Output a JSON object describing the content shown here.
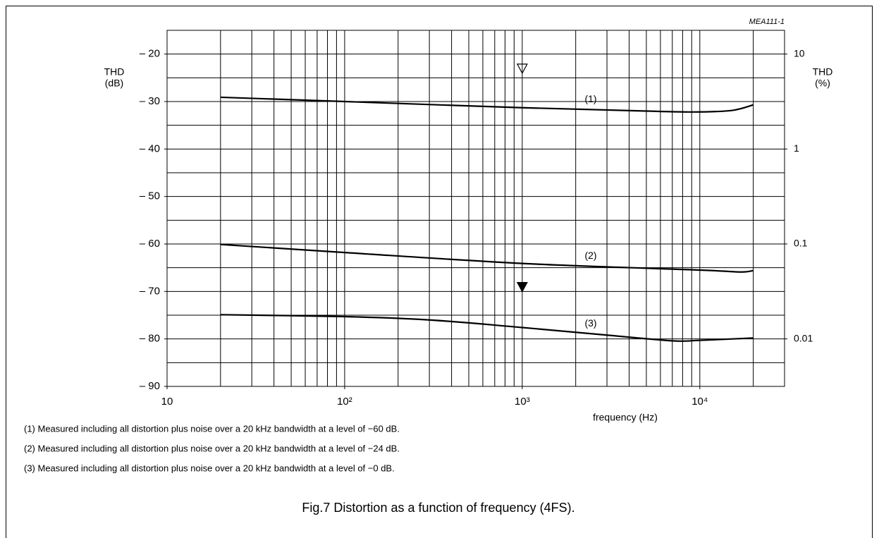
{
  "chart_data": {
    "type": "line",
    "code": "MEA111-1",
    "y_label": [
      "THD",
      "(dB)"
    ],
    "y2_label": [
      "THD",
      "(%)"
    ],
    "x_label": "frequency  (Hz)",
    "xlog": true,
    "y2log": true,
    "xlim": [
      10,
      30000
    ],
    "ylim": [
      -90,
      -15
    ],
    "y2lim": [
      0.00316,
      17.78
    ],
    "xticks": [
      10,
      {
        "value": 100,
        "label": "10²"
      },
      {
        "value": 1000,
        "label": "10³"
      },
      {
        "value": 10000,
        "label": "10⁴"
      }
    ],
    "yticks": [
      {
        "value": -20,
        "label": "– 20"
      },
      {
        "value": -30,
        "label": "– 30"
      },
      {
        "value": -40,
        "label": "– 40"
      },
      {
        "value": -50,
        "label": "– 50"
      },
      {
        "value": -60,
        "label": "– 60"
      },
      {
        "value": -70,
        "label": "– 70"
      },
      {
        "value": -80,
        "label": "– 80"
      },
      {
        "value": -90,
        "label": "– 90"
      }
    ],
    "y2ticks": [
      10,
      1,
      0.1,
      0.01
    ],
    "xgrid": [
      20,
      30,
      40,
      50,
      60,
      70,
      80,
      90,
      100,
      200,
      300,
      400,
      500,
      600,
      700,
      800,
      900,
      1000,
      2000,
      3000,
      4000,
      5000,
      6000,
      7000,
      8000,
      9000,
      10000,
      20000
    ],
    "ygrid": [
      -85,
      -80,
      -75,
      -70,
      -65,
      -60,
      -55,
      -50,
      -45,
      -40,
      -35,
      -30,
      -25,
      -20
    ],
    "color": "#000000",
    "series": [
      {
        "name": "(1)",
        "x": [
          20,
          100,
          1000,
          5000,
          9000,
          15000,
          20000
        ],
        "values": [
          -29.1,
          -30,
          -31.3,
          -32,
          -32.2,
          -31.9,
          -30.7
        ]
      },
      {
        "name": "(2)",
        "x": [
          20,
          100,
          1000,
          10000,
          17000,
          20000
        ],
        "values": [
          -60.1,
          -61.8,
          -64.1,
          -65.5,
          -65.9,
          -65.6
        ]
      },
      {
        "name": "(3)",
        "x": [
          20,
          100,
          300,
          1000,
          3000,
          7000,
          10000,
          20000
        ],
        "values": [
          -74.9,
          -75.3,
          -76,
          -77.6,
          -79.2,
          -80.4,
          -80.3,
          -79.8
        ]
      }
    ],
    "markers": [
      {
        "x": 1000,
        "y": -23,
        "fill": "none"
      },
      {
        "x": 1000,
        "y": -69,
        "fill": "#000000"
      }
    ],
    "notes": [
      "(1)  Measured including all distortion plus noise over a 20 kHz bandwidth at a level of −60 dB.",
      "(2)  Measured including all distortion plus noise over a 20 kHz bandwidth at a level of −24 dB.",
      "(3)  Measured including all distortion plus noise over a 20 kHz bandwidth at a level of −0 dB."
    ],
    "caption": "Fig.7  Distortion as a function of frequency (4FS)."
  }
}
